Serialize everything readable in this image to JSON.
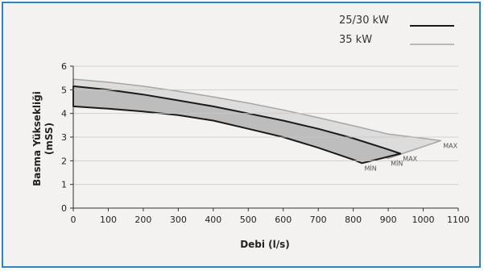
{
  "chart_data": {
    "type": "line",
    "xlabel": "Debi (l/s)",
    "ylabel_line1": "Basma Yüksekliği",
    "ylabel_line2": "(mSS)",
    "xlim": [
      0,
      1100
    ],
    "ylim": [
      0,
      6
    ],
    "x_ticks": [
      0,
      100,
      200,
      300,
      400,
      500,
      600,
      700,
      800,
      900,
      1000,
      1100
    ],
    "y_ticks": [
      0,
      1,
      2,
      3,
      4,
      5,
      6
    ],
    "legend": [
      {
        "label": "25/30 kW",
        "color": "#1a1a1a"
      },
      {
        "label": "35 kW",
        "color": "#a6a6a6"
      }
    ],
    "bands": [
      {
        "series": "35 kW",
        "fill": "#dcdcdc",
        "stroke": "#a6a6a6",
        "max": {
          "label": "MAX",
          "x": [
            0,
            100,
            200,
            300,
            400,
            500,
            600,
            700,
            800,
            900,
            1000,
            1050
          ],
          "y": [
            5.45,
            5.32,
            5.15,
            4.94,
            4.7,
            4.44,
            4.15,
            3.82,
            3.48,
            3.13,
            2.95,
            2.85
          ]
        },
        "min": {
          "label": "MİN",
          "x": [
            0,
            100,
            200,
            300,
            400,
            500,
            600,
            700,
            800,
            900
          ],
          "y": [
            4.33,
            4.28,
            4.21,
            4.12,
            3.99,
            3.8,
            3.52,
            3.1,
            2.6,
            2.1
          ]
        }
      },
      {
        "series": "25/30 kW",
        "fill": "#bdbdbd",
        "stroke": "#1a1a1a",
        "max": {
          "label": "MAX",
          "x": [
            0,
            100,
            200,
            300,
            400,
            500,
            600,
            700,
            800,
            900,
            935
          ],
          "y": [
            5.15,
            5.0,
            4.8,
            4.55,
            4.3,
            4.0,
            3.7,
            3.35,
            2.95,
            2.48,
            2.3
          ]
        },
        "min": {
          "label": "MİN",
          "x": [
            0,
            100,
            200,
            300,
            400,
            500,
            600,
            700,
            800,
            825
          ],
          "y": [
            4.3,
            4.2,
            4.08,
            3.93,
            3.7,
            3.35,
            3.0,
            2.55,
            2.05,
            1.9
          ]
        }
      }
    ]
  }
}
